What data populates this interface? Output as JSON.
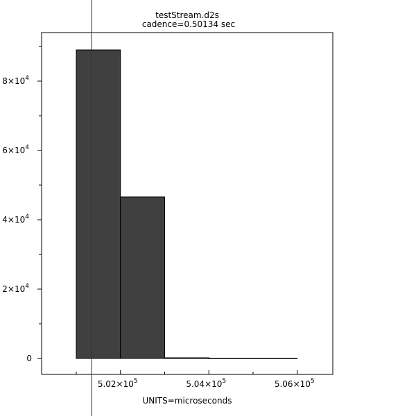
{
  "chart_data": {
    "type": "bar",
    "title": "testStream.d2s",
    "subtitle": "cadence=0.50134 sec",
    "xlabel": "UNITS=microseconds",
    "ylabel": "",
    "bins": [
      {
        "x0": 501000,
        "x1": 502000,
        "value": 89000
      },
      {
        "x0": 502000,
        "x1": 503000,
        "value": 46600
      },
      {
        "x0": 503000,
        "x1": 504000,
        "value": 200
      },
      {
        "x0": 504000,
        "x1": 505000,
        "value": 20
      },
      {
        "x0": 505000,
        "x1": 506000,
        "value": 20
      }
    ],
    "xlim": [
      500216,
      506804
    ],
    "ylim": [
      -4600,
      94000
    ],
    "xticks": [
      {
        "v": 502000,
        "m": "5.02",
        "e": "5"
      },
      {
        "v": 504000,
        "m": "5.04",
        "e": "5"
      },
      {
        "v": 506000,
        "m": "5.06",
        "e": "5"
      }
    ],
    "yticks": [
      {
        "v": 0,
        "m": "0",
        "e": ""
      },
      {
        "v": 20000,
        "m": "2",
        "e": "4"
      },
      {
        "v": 40000,
        "m": "4",
        "e": "4"
      },
      {
        "v": 60000,
        "m": "6",
        "e": "4"
      },
      {
        "v": 80000,
        "m": "8",
        "e": "4"
      }
    ],
    "marker_line_x": 501345,
    "bar_color": "#404040",
    "grid": false
  }
}
